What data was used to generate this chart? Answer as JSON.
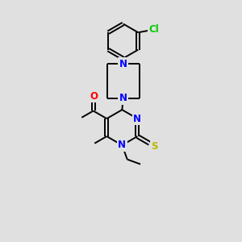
{
  "bg_color": "#e0e0e0",
  "bond_color": "#000000",
  "N_color": "#0000ff",
  "O_color": "#ff0000",
  "S_color": "#b8b800",
  "Cl_color": "#00cc00",
  "font_size": 8.5,
  "label_font_size": 8.5,
  "line_width": 1.4,
  "xlim": [
    0,
    10
  ],
  "ylim": [
    0,
    11
  ]
}
